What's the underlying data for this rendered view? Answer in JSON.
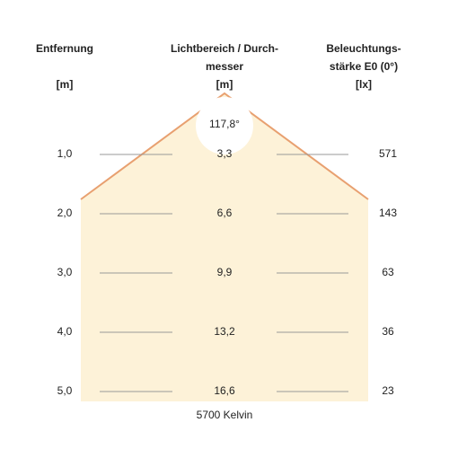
{
  "headers": {
    "distance": {
      "lines": [
        "Entfernung",
        "[m]"
      ]
    },
    "diameter": {
      "lines": [
        "Lichtbereich / Durch-",
        "messer",
        "[m]"
      ]
    },
    "illuminance": {
      "lines": [
        "Beleuchtungs-",
        "stärke E0 (0°)",
        "[lx]"
      ]
    }
  },
  "beam_angle": "117,8°",
  "rows": [
    {
      "distance": "1,0",
      "diameter": "3,3",
      "illuminance": "571"
    },
    {
      "distance": "2,0",
      "diameter": "6,6",
      "illuminance": "143"
    },
    {
      "distance": "3,0",
      "diameter": "9,9",
      "illuminance": "63"
    },
    {
      "distance": "4,0",
      "diameter": "13,2",
      "illuminance": "36"
    },
    {
      "distance": "5,0",
      "diameter": "16,6",
      "illuminance": "23"
    }
  ],
  "footer": "5700 Kelvin"
}
